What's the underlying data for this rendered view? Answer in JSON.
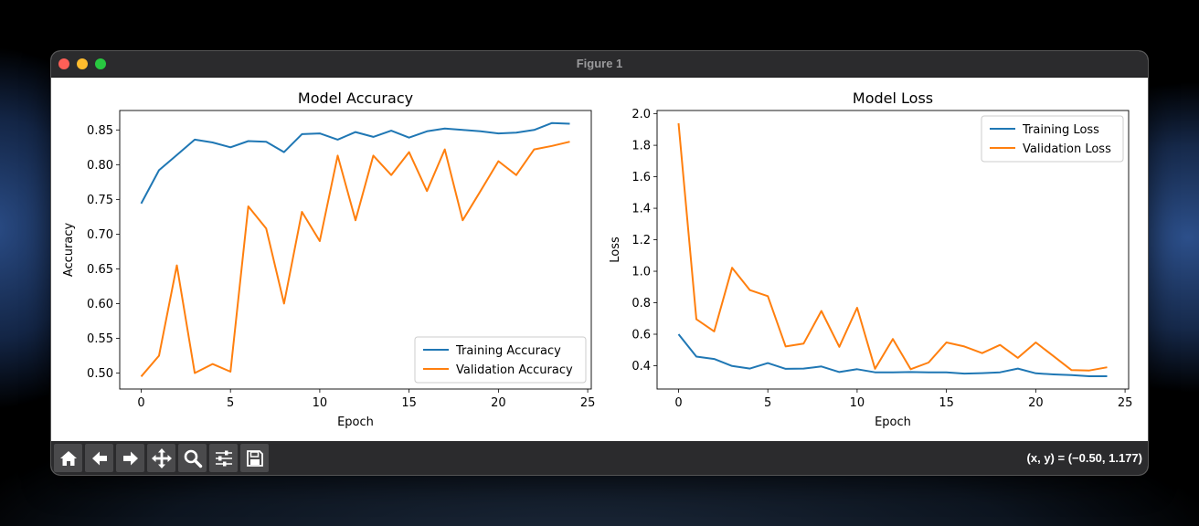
{
  "window": {
    "title": "Figure 1",
    "coords": "(x, y) = (−0.50, 1.177)"
  },
  "toolbar": {
    "buttons": [
      {
        "icon": "home-icon"
      },
      {
        "icon": "back-arrow-icon"
      },
      {
        "icon": "forward-arrow-icon"
      },
      {
        "icon": "pan-move-icon"
      },
      {
        "icon": "zoom-magnifier-icon"
      },
      {
        "icon": "configure-subplots-icon"
      },
      {
        "icon": "save-floppy-icon"
      }
    ]
  },
  "colors": {
    "training": "#1f77b4",
    "validation": "#ff7f0e"
  },
  "chart_data": [
    {
      "type": "line",
      "title": "Model Accuracy",
      "xlabel": "Epoch",
      "ylabel": "Accuracy",
      "xlim": [
        -1.2,
        25.2
      ],
      "ylim": [
        0.477,
        0.878
      ],
      "xticks": [
        0,
        5,
        10,
        15,
        20,
        25
      ],
      "yticks": [
        0.5,
        0.55,
        0.6,
        0.65,
        0.7,
        0.75,
        0.8,
        0.85
      ],
      "ytick_labels": [
        "0.50",
        "0.55",
        "0.60",
        "0.65",
        "0.70",
        "0.75",
        "0.80",
        "0.85"
      ],
      "legend_position": "lower-right",
      "x": [
        0,
        1,
        2,
        3,
        4,
        5,
        6,
        7,
        8,
        9,
        10,
        11,
        12,
        13,
        14,
        15,
        16,
        17,
        18,
        19,
        20,
        21,
        22,
        23,
        24
      ],
      "series": [
        {
          "name": "Training Accuracy",
          "color_key": "training",
          "values": [
            0.744,
            0.792,
            0.814,
            0.836,
            0.832,
            0.825,
            0.834,
            0.833,
            0.818,
            0.844,
            0.845,
            0.836,
            0.847,
            0.84,
            0.849,
            0.839,
            0.848,
            0.852,
            0.85,
            0.848,
            0.845,
            0.846,
            0.85,
            0.86,
            0.859
          ]
        },
        {
          "name": "Validation Accuracy",
          "color_key": "validation",
          "values": [
            0.495,
            0.525,
            0.655,
            0.5,
            0.513,
            0.502,
            0.74,
            0.708,
            0.6,
            0.732,
            0.69,
            0.813,
            0.72,
            0.813,
            0.785,
            0.818,
            0.762,
            0.822,
            0.72,
            0.762,
            0.805,
            0.785,
            0.822,
            0.827,
            0.833
          ]
        }
      ]
    },
    {
      "type": "line",
      "title": "Model Loss",
      "xlabel": "Epoch",
      "ylabel": "Loss",
      "xlim": [
        -1.2,
        25.2
      ],
      "ylim": [
        0.252,
        2.021
      ],
      "xticks": [
        0,
        5,
        10,
        15,
        20,
        25
      ],
      "yticks": [
        0.4,
        0.6,
        0.8,
        1.0,
        1.2,
        1.4,
        1.6,
        1.8,
        2.0
      ],
      "ytick_labels": [
        "0.4",
        "0.6",
        "0.8",
        "1.0",
        "1.2",
        "1.4",
        "1.6",
        "1.8",
        "2.0"
      ],
      "legend_position": "upper-right",
      "x": [
        0,
        1,
        2,
        3,
        4,
        5,
        6,
        7,
        8,
        9,
        10,
        11,
        12,
        13,
        14,
        15,
        16,
        17,
        18,
        19,
        20,
        21,
        22,
        23,
        24
      ],
      "series": [
        {
          "name": "Training Loss",
          "color_key": "training",
          "values": [
            0.6,
            0.458,
            0.443,
            0.398,
            0.382,
            0.417,
            0.38,
            0.382,
            0.395,
            0.36,
            0.378,
            0.358,
            0.358,
            0.36,
            0.358,
            0.358,
            0.35,
            0.353,
            0.358,
            0.382,
            0.352,
            0.345,
            0.34,
            0.333,
            0.333
          ]
        },
        {
          "name": "Validation Loss",
          "color_key": "validation",
          "values": [
            1.94,
            0.695,
            0.618,
            1.022,
            0.88,
            0.842,
            0.522,
            0.54,
            0.748,
            0.52,
            0.768,
            0.38,
            0.57,
            0.378,
            0.42,
            0.548,
            0.522,
            0.48,
            0.532,
            0.45,
            0.548,
            0.46,
            0.372,
            0.37,
            0.39
          ]
        }
      ]
    }
  ]
}
